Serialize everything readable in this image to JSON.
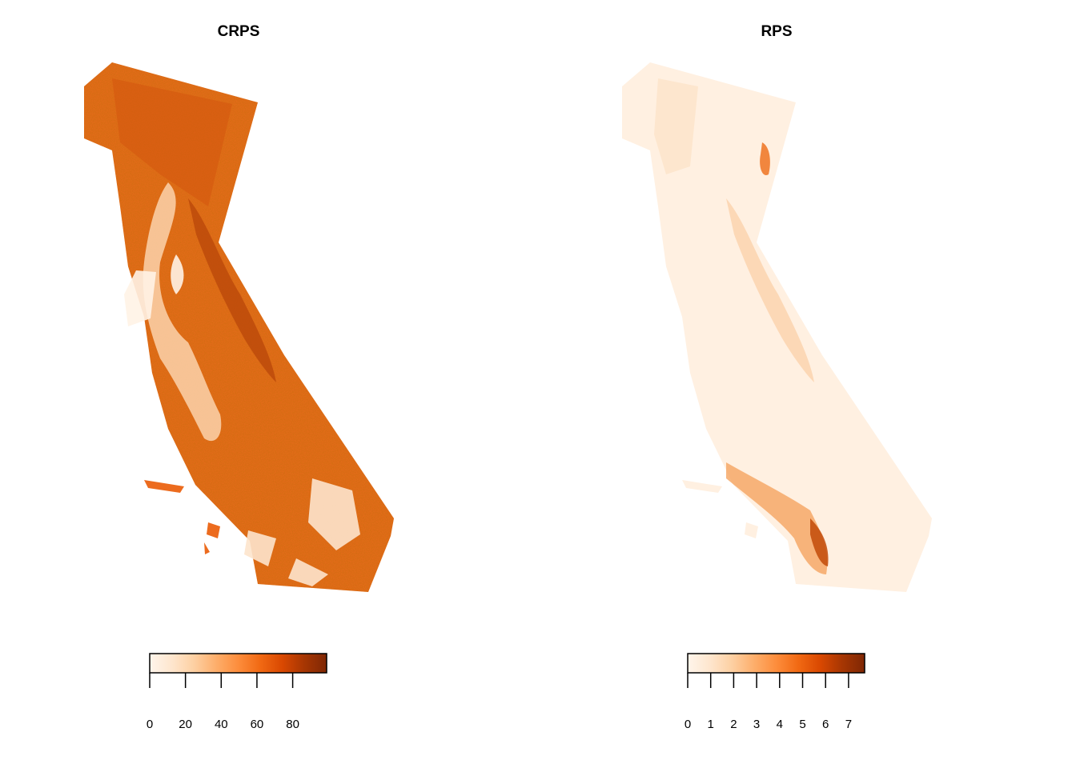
{
  "panels": [
    {
      "title": "CRPS",
      "colorbar": {
        "min": 0,
        "max": 99,
        "ticks": [
          "0",
          "20",
          "40",
          "60",
          "80"
        ],
        "tick_values": [
          0,
          20,
          40,
          60,
          80
        ]
      },
      "fill": {
        "base": "#ec6b1e",
        "dark": "#c84d0a",
        "light": "#fdebd6",
        "mid": "#f38a3c"
      }
    },
    {
      "title": "RPS",
      "colorbar": {
        "min": 0,
        "max": 7.7,
        "ticks": [
          "0",
          "1",
          "2",
          "3",
          "4",
          "5",
          "6",
          "7"
        ],
        "tick_values": [
          0,
          1,
          2,
          3,
          4,
          5,
          6,
          7
        ]
      },
      "fill": {
        "base": "#fff1e3",
        "dark": "#e06a1c",
        "light": "#fff8f1",
        "mid": "#fbd4ad"
      }
    }
  ],
  "colormap": [
    "#fff5eb",
    "#fee6ce",
    "#fdd0a2",
    "#fdae6b",
    "#fd8d3c",
    "#f16913",
    "#d94801",
    "#a63603",
    "#7f2704"
  ]
}
